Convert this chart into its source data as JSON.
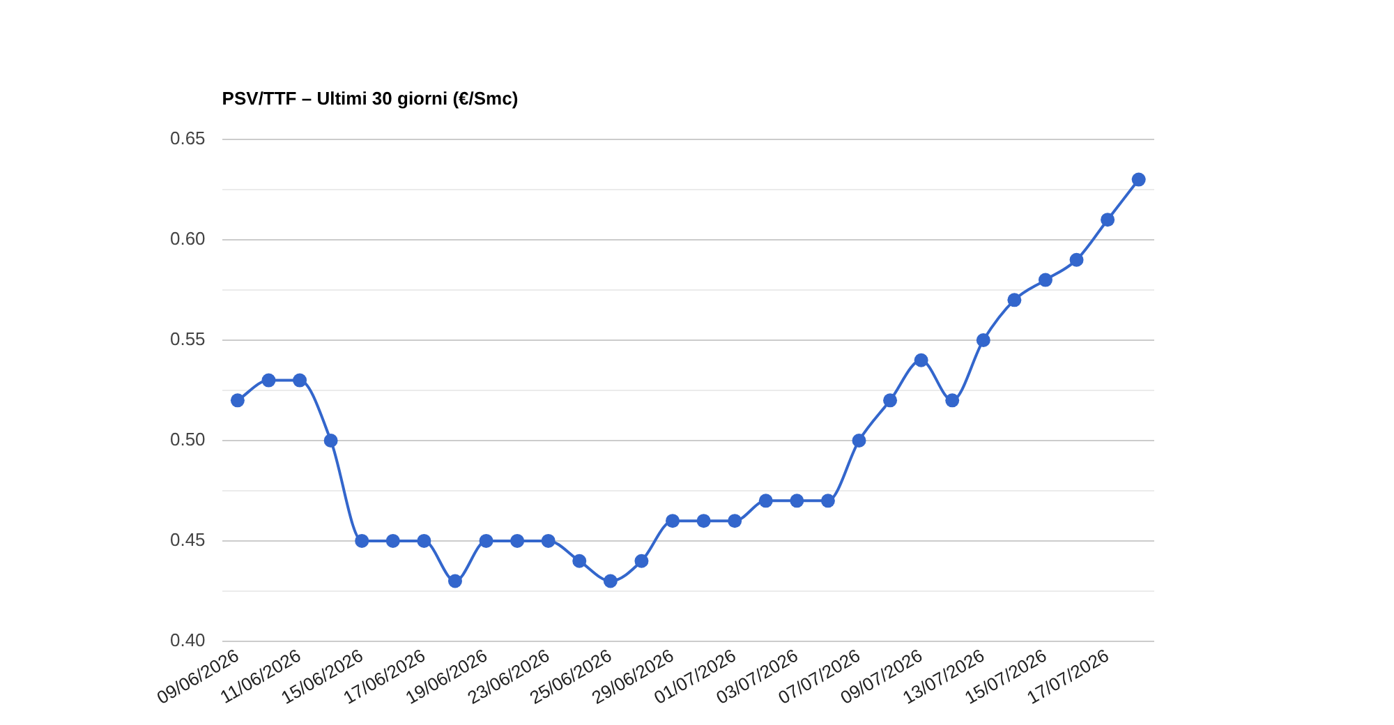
{
  "chart_data": {
    "type": "line",
    "title": "PSV/TTF – Ultimi 30 giorni (€/Smc)",
    "categories": [
      "09/06/2026",
      null,
      "11/06/2026",
      null,
      "15/06/2026",
      null,
      "17/06/2026",
      null,
      "19/06/2026",
      null,
      "23/06/2026",
      null,
      "25/06/2026",
      null,
      "29/06/2026",
      null,
      "01/07/2026",
      null,
      "03/07/2026",
      null,
      "07/07/2026",
      null,
      "09/07/2026",
      null,
      "13/07/2026",
      null,
      "15/07/2026",
      null,
      "17/07/2026",
      null
    ],
    "series": [
      {
        "color": "#3366cc",
        "values": [
          0.52,
          0.53,
          0.53,
          0.5,
          0.45,
          0.45,
          0.45,
          0.43,
          0.45,
          0.45,
          0.45,
          0.44,
          0.43,
          0.44,
          0.46,
          0.46,
          0.46,
          0.47,
          0.47,
          0.47,
          0.5,
          0.52,
          0.54,
          0.52,
          0.55,
          0.57,
          0.58,
          0.59,
          0.61,
          0.63
        ]
      }
    ],
    "ylim": [
      0.4,
      0.65
    ],
    "yticks": [
      {
        "value": 0.4,
        "label": "0.40"
      },
      {
        "value": 0.425,
        "label": null
      },
      {
        "value": 0.45,
        "label": "0.45"
      },
      {
        "value": 0.475,
        "label": null
      },
      {
        "value": 0.5,
        "label": "0.50"
      },
      {
        "value": 0.525,
        "label": null
      },
      {
        "value": 0.55,
        "label": "0.55"
      },
      {
        "value": 0.575,
        "label": null
      },
      {
        "value": 0.6,
        "label": "0.60"
      },
      {
        "value": 0.625,
        "label": null
      },
      {
        "value": 0.65,
        "label": "0.65"
      }
    ],
    "grid": "y",
    "marker": "circle",
    "line_style": "solid",
    "legend": false
  }
}
